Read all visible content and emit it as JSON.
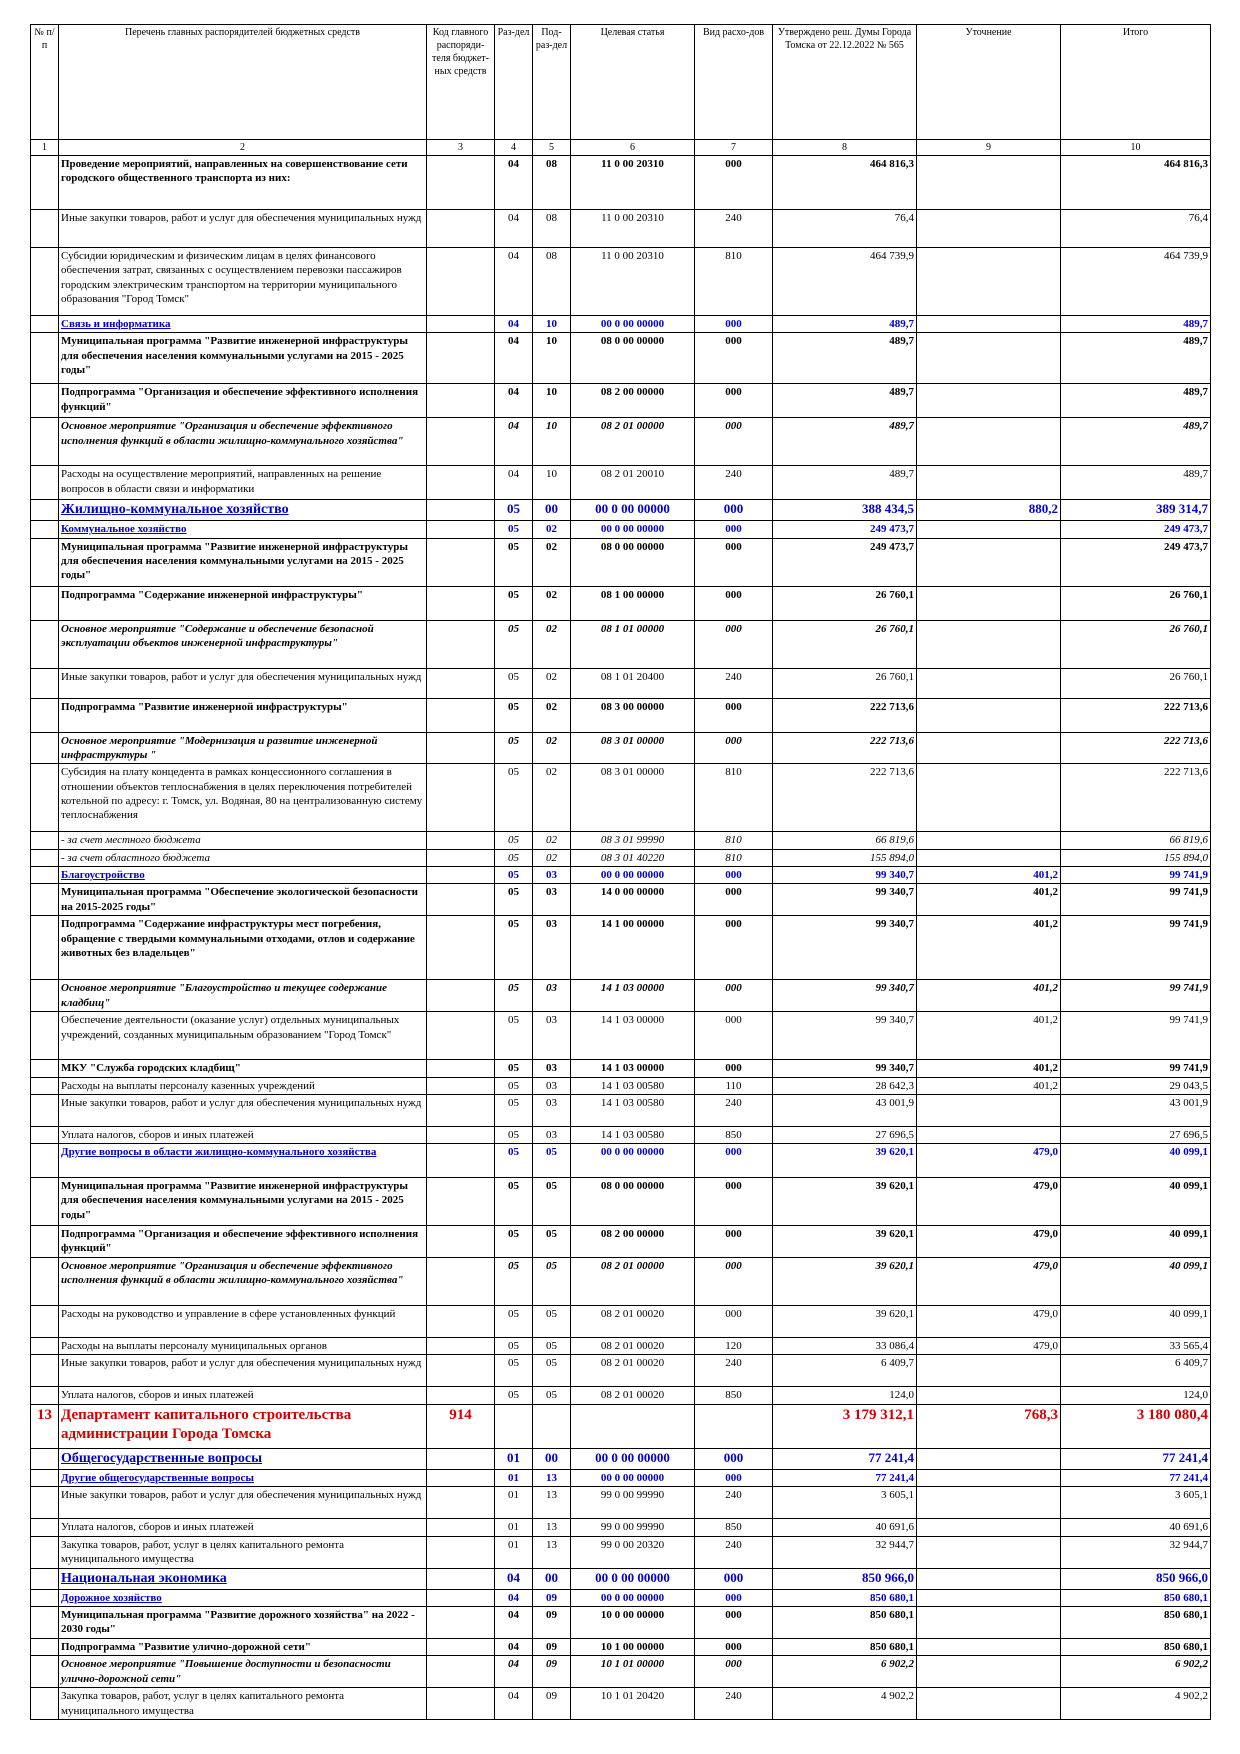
{
  "header": [
    "№ п/п",
    "Перечень главных распорядителей бюджетных средств",
    "Код главного распоряди-теля бюджет-ных средств",
    "Раз-дел",
    "Под-раз-дел",
    "Целевая статья",
    "Вид расхо-дов",
    "Утверждено реш. Думы Города Томска от 22.12.2022 № 565",
    "Уточнение",
    "Итого"
  ],
  "col_numbers": [
    "1",
    "2",
    "3",
    "4",
    "5",
    "6",
    "7",
    "8",
    "9",
    "10"
  ],
  "rows": [
    {
      "s": "b",
      "h": 54,
      "num": "",
      "name": "Проведение мероприятий, направленных на совершенствование сети городского общественного транспорта из них:",
      "code": "",
      "razdel": "04",
      "podrazdel": "08",
      "celevaya": "11 0 00 20310",
      "vid": "000",
      "utv": "464 816,3",
      "utoch": "",
      "itogo": "464 816,3"
    },
    {
      "s": "n",
      "h": 38,
      "num": "",
      "name": "Иные закупки товаров, работ и услуг для обеспечения муниципальных нужд",
      "code": "",
      "razdel": "04",
      "podrazdel": "08",
      "celevaya": "11 0 00 20310",
      "vid": "240",
      "utv": "76,4",
      "utoch": "",
      "itogo": "76,4"
    },
    {
      "s": "n",
      "h": 68,
      "num": "",
      "name": "Субсидии юридическим и физическим лицам в целях финансового обеспечения затрат, связанных с осуществлением перевозки пассажиров городским электрическим транспортом на территории муниципального образования \"Город Томск\"",
      "code": "",
      "razdel": "04",
      "podrazdel": "08",
      "celevaya": "11 0 00 20310",
      "vid": "810",
      "utv": "464 739,9",
      "utoch": "",
      "itogo": "464 739,9"
    },
    {
      "s": "u",
      "h": 16,
      "num": "",
      "name": "Связь и информатика",
      "code": "",
      "razdel": "04",
      "podrazdel": "10",
      "celevaya": "00 0 00 00000",
      "vid": "000",
      "utv": "489,7",
      "utoch": "",
      "itogo": "489,7"
    },
    {
      "s": "b",
      "h": 51,
      "num": "",
      "name": "Муниципальная программа \"Развитие инженерной инфраструктуры для обеспечения населения коммунальными услугами на 2015 - 2025 годы\"",
      "code": "",
      "razdel": "04",
      "podrazdel": "10",
      "celevaya": "08 0 00 00000",
      "vid": "000",
      "utv": "489,7",
      "utoch": "",
      "itogo": "489,7"
    },
    {
      "s": "b",
      "h": 34,
      "num": "",
      "name": "Подпрограмма \"Организация и обеспечение эффективного исполнения функций\"",
      "code": "",
      "razdel": "04",
      "podrazdel": "10",
      "celevaya": "08 2 00 00000",
      "vid": "000",
      "utv": "489,7",
      "utoch": "",
      "itogo": "489,7"
    },
    {
      "s": "i",
      "h": 48,
      "num": "",
      "name": "Основное мероприятие \"Организация и обеспечение эффективного исполнения функций в области жилищно-коммунального хозяйства\"",
      "code": "",
      "razdel": "04",
      "podrazdel": "10",
      "celevaya": "08 2 01 00000",
      "vid": "000",
      "utv": "489,7",
      "utoch": "",
      "itogo": "489,7"
    },
    {
      "s": "n",
      "h": 34,
      "num": "",
      "name": "Расходы на осуществление мероприятий, направленных на решение вопросов в области связи и информатики",
      "code": "",
      "razdel": "04",
      "podrazdel": "10",
      "celevaya": "08 2 01 20010",
      "vid": "240",
      "utv": "489,7",
      "utoch": "",
      "itogo": "489,7"
    },
    {
      "s": "u2",
      "h": 18,
      "num": "",
      "name": "Жилищно-коммунальное хозяйство",
      "code": "",
      "razdel": "05",
      "podrazdel": "00",
      "celevaya": "00 0 00 00000",
      "vid": "000",
      "utv": "388 434,5",
      "utoch": "880,2",
      "itogo": "389 314,7"
    },
    {
      "s": "u",
      "h": 16,
      "num": "",
      "name": "Коммунальное хозяйство",
      "code": "",
      "razdel": "05",
      "podrazdel": "02",
      "celevaya": "00 0 00 00000",
      "vid": "000",
      "utv": "249 473,7",
      "utoch": "",
      "itogo": "249 473,7"
    },
    {
      "s": "b",
      "h": 48,
      "num": "",
      "name": "Муниципальная программа \"Развитие инженерной инфраструктуры для обеспечения населения коммунальными услугами на 2015 - 2025 годы\"",
      "code": "",
      "razdel": "05",
      "podrazdel": "02",
      "celevaya": "08 0 00 00000",
      "vid": "000",
      "utv": "249 473,7",
      "utoch": "",
      "itogo": "249 473,7"
    },
    {
      "s": "b",
      "h": 34,
      "num": "",
      "name": "Подпрограмма \"Содержание инженерной инфраструктуры\"",
      "code": "",
      "razdel": "05",
      "podrazdel": "02",
      "celevaya": "08 1 00 00000",
      "vid": "000",
      "utv": "26 760,1",
      "utoch": "",
      "itogo": "26 760,1"
    },
    {
      "s": "i",
      "h": 48,
      "num": "",
      "name": "Основное мероприятие \"Содержание и обеспечение безопасной эксплуатации объектов инженерной инфраструктуры\"",
      "code": "",
      "razdel": "05",
      "podrazdel": "02",
      "celevaya": "08 1 01 00000",
      "vid": "000",
      "utv": "26 760,1",
      "utoch": "",
      "itogo": "26 760,1"
    },
    {
      "s": "n",
      "h": 30,
      "num": "",
      "name": "Иные закупки товаров, работ и услуг для обеспечения муниципальных нужд",
      "code": "",
      "razdel": "05",
      "podrazdel": "02",
      "celevaya": "08 1 01 20400",
      "vid": "240",
      "utv": "26 760,1",
      "utoch": "",
      "itogo": "26 760,1"
    },
    {
      "s": "b",
      "h": 34,
      "num": "",
      "name": "Подпрограмма \"Развитие инженерной инфраструктуры\"",
      "code": "",
      "razdel": "05",
      "podrazdel": "02",
      "celevaya": "08 3 00 00000",
      "vid": "000",
      "utv": "222 713,6",
      "utoch": "",
      "itogo": "222 713,6"
    },
    {
      "s": "i",
      "h": 30,
      "num": "",
      "name": "Основное мероприятие \"Модернизация и развитие инженерной инфраструктуры \"",
      "code": "",
      "razdel": "05",
      "podrazdel": "02",
      "celevaya": "08 3 01 00000",
      "vid": "000",
      "utv": "222 713,6",
      "utoch": "",
      "itogo": "222 713,6"
    },
    {
      "s": "n",
      "h": 68,
      "num": "",
      "name": "Субсидия на плату концедента в рамках концессионного соглашения в отношении объектов теплоснабжения в целях переключения потребителей котельной по адресу: г. Томск, ул. Водяная, 80 на централизованную систему теплоснабжения",
      "code": "",
      "razdel": "05",
      "podrazdel": "02",
      "celevaya": "08 3 01 00000",
      "vid": "810",
      "utv": "222 713,6",
      "utoch": "",
      "itogo": "222 713,6"
    },
    {
      "s": "s",
      "h": 15,
      "num": "",
      "name": "- за счет местного бюджета",
      "code": "",
      "razdel": "05",
      "podrazdel": "02",
      "celevaya": "08 3 01 99990",
      "vid": "810",
      "utv": "66 819,6",
      "utoch": "",
      "itogo": "66 819,6"
    },
    {
      "s": "s",
      "h": 15,
      "num": "",
      "name": "- за счет областного бюджета",
      "code": "",
      "razdel": "05",
      "podrazdel": "02",
      "celevaya": "08 3 01 40220",
      "vid": "810",
      "utv": "155 894,0",
      "utoch": "",
      "itogo": "155 894,0"
    },
    {
      "s": "u",
      "h": 16,
      "num": "",
      "name": "Благоустройство",
      "code": "",
      "razdel": "05",
      "podrazdel": "03",
      "celevaya": "00 0 00 00000",
      "vid": "000",
      "utv": "99 340,7",
      "utoch": "401,2",
      "itogo": "99 741,9"
    },
    {
      "s": "b",
      "h": 32,
      "num": "",
      "name": "Муниципальная программа \"Обеспечение экологической безопасности на 2015-2025 годы\"",
      "code": "",
      "razdel": "05",
      "podrazdel": "03",
      "celevaya": "14 0 00 00000",
      "vid": "000",
      "utv": "99 340,7",
      "utoch": "401,2",
      "itogo": "99 741,9"
    },
    {
      "s": "b",
      "h": 64,
      "num": "",
      "name": "Подпрограмма \"Содержание инфраструктуры мест погребения, обращение с твердыми коммунальными отходами, отлов и содержание животных без владельцев\"",
      "code": "",
      "razdel": "05",
      "podrazdel": "03",
      "celevaya": "14 1 00 00000",
      "vid": "000",
      "utv": "99 340,7",
      "utoch": "401,2",
      "itogo": "99 741,9"
    },
    {
      "s": "i",
      "h": 32,
      "num": "",
      "name": "Основное мероприятие \"Благоустройство и текущее содержание кладбищ\"",
      "code": "",
      "razdel": "05",
      "podrazdel": "03",
      "celevaya": "14 1 03 00000",
      "vid": "000",
      "utv": "99 340,7",
      "utoch": "401,2",
      "itogo": "99 741,9"
    },
    {
      "s": "n",
      "h": 48,
      "num": "",
      "name": "Обеспечение деятельности (оказание услуг) отдельных муниципальных учреждений, созданных муниципальным образованием \"Город Томск\"",
      "code": "",
      "razdel": "05",
      "podrazdel": "03",
      "celevaya": "14 1 03 00000",
      "vid": "000",
      "utv": "99 340,7",
      "utoch": "401,2",
      "itogo": "99 741,9"
    },
    {
      "s": "b",
      "h": 15,
      "num": "",
      "name": "МКУ \"Служба городских кладбищ\"",
      "code": "",
      "razdel": "05",
      "podrazdel": "03",
      "celevaya": "14 1 03 00000",
      "vid": "000",
      "utv": "99 340,7",
      "utoch": "401,2",
      "itogo": "99 741,9"
    },
    {
      "s": "n",
      "h": 15,
      "num": "",
      "name": "Расходы на выплаты персоналу казенных учреждений",
      "code": "",
      "razdel": "05",
      "podrazdel": "03",
      "celevaya": "14 1 03 00580",
      "vid": "110",
      "utv": "28 642,3",
      "utoch": "401,2",
      "itogo": "29 043,5"
    },
    {
      "s": "n",
      "h": 32,
      "num": "",
      "name": "Иные закупки товаров, работ и услуг для обеспечения муниципальных нужд",
      "code": "",
      "razdel": "05",
      "podrazdel": "03",
      "celevaya": "14 1 03 00580",
      "vid": "240",
      "utv": "43 001,9",
      "utoch": "",
      "itogo": "43 001,9"
    },
    {
      "s": "n",
      "h": 16,
      "num": "",
      "name": "Уплата налогов, сборов и иных платежей",
      "code": "",
      "razdel": "05",
      "podrazdel": "03",
      "celevaya": "14 1 03 00580",
      "vid": "850",
      "utv": "27 696,5",
      "utoch": "",
      "itogo": "27 696,5"
    },
    {
      "s": "u",
      "h": 34,
      "num": "",
      "name": "Другие вопросы в области жилищно-коммунального хозяйства",
      "code": "",
      "razdel": "05",
      "podrazdel": "05",
      "celevaya": "00 0 00 00000",
      "vid": "000",
      "utv": "39 620,1",
      "utoch": "479,0",
      "itogo": "40 099,1"
    },
    {
      "s": "b",
      "h": 48,
      "num": "",
      "name": "Муниципальная программа \"Развитие инженерной инфраструктуры для обеспечения населения коммунальными услугами на 2015 - 2025 годы\"",
      "code": "",
      "razdel": "05",
      "podrazdel": "05",
      "celevaya": "08 0 00 00000",
      "vid": "000",
      "utv": "39 620,1",
      "utoch": "479,0",
      "itogo": "40 099,1"
    },
    {
      "s": "b",
      "h": 32,
      "num": "",
      "name": "Подпрограмма \"Организация и обеспечение эффективного исполнения функций\"",
      "code": "",
      "razdel": "05",
      "podrazdel": "05",
      "celevaya": "08 2 00 00000",
      "vid": "000",
      "utv": "39 620,1",
      "utoch": "479,0",
      "itogo": "40 099,1"
    },
    {
      "s": "i",
      "h": 48,
      "num": "",
      "name": "Основное мероприятие \"Организация и обеспечение эффективного исполнения функций в области жилищно-коммунального хозяйства\"",
      "code": "",
      "razdel": "05",
      "podrazdel": "05",
      "celevaya": "08 2 01 00000",
      "vid": "000",
      "utv": "39 620,1",
      "utoch": "479,0",
      "itogo": "40 099,1"
    },
    {
      "s": "n",
      "h": 32,
      "num": "",
      "name": "Расходы на руководство и управление в сфере установленных функций",
      "code": "",
      "razdel": "05",
      "podrazdel": "05",
      "celevaya": "08 2 01 00020",
      "vid": "000",
      "utv": "39 620,1",
      "utoch": "479,0",
      "itogo": "40 099,1"
    },
    {
      "s": "n",
      "h": 16,
      "num": "",
      "name": "Расходы на выплаты персоналу муниципальных органов",
      "code": "",
      "razdel": "05",
      "podrazdel": "05",
      "celevaya": "08 2 01 00020",
      "vid": "120",
      "utv": "33 086,4",
      "utoch": "479,0",
      "itogo": "33 565,4"
    },
    {
      "s": "n",
      "h": 32,
      "num": "",
      "name": "Иные закупки товаров, работ и услуг для обеспечения муниципальных нужд",
      "code": "",
      "razdel": "05",
      "podrazdel": "05",
      "celevaya": "08 2 01 00020",
      "vid": "240",
      "utv": "6 409,7",
      "utoch": "",
      "itogo": "6 409,7"
    },
    {
      "s": "n",
      "h": 16,
      "num": "",
      "name": "Уплата налогов, сборов и иных платежей",
      "code": "",
      "razdel": "05",
      "podrazdel": "05",
      "celevaya": "08 2 01 00020",
      "vid": "850",
      "utv": "124,0",
      "utoch": "",
      "itogo": "124,0"
    },
    {
      "s": "d",
      "h": 44,
      "num": "13",
      "name": "Департамент капитального строительства администрации Города Томска",
      "code": "914",
      "razdel": "",
      "podrazdel": "",
      "celevaya": "",
      "vid": "",
      "utv": "3 179 312,1",
      "utoch": "768,3",
      "itogo": "3 180 080,4"
    },
    {
      "s": "u2",
      "h": 18,
      "num": "",
      "name": "Общегосударственные вопросы",
      "code": "",
      "razdel": "01",
      "podrazdel": "00",
      "celevaya": "00 0 00 00000",
      "vid": "000",
      "utv": "77 241,4",
      "utoch": "",
      "itogo": "77 241,4"
    },
    {
      "s": "u",
      "h": 16,
      "num": "",
      "name": "Другие общегосударственные вопросы",
      "code": "",
      "razdel": "01",
      "podrazdel": "13",
      "celevaya": "00 0 00 00000",
      "vid": "000",
      "utv": "77 241,4",
      "utoch": "",
      "itogo": "77 241,4"
    },
    {
      "s": "n",
      "h": 32,
      "num": "",
      "name": "Иные закупки товаров, работ и услуг для обеспечения муниципальных нужд",
      "code": "",
      "razdel": "01",
      "podrazdel": "13",
      "celevaya": "99 0 00 99990",
      "vid": "240",
      "utv": "3 605,1",
      "utoch": "",
      "itogo": "3 605,1"
    },
    {
      "s": "n",
      "h": 16,
      "num": "",
      "name": "Уплата налогов, сборов и иных платежей",
      "code": "",
      "razdel": "01",
      "podrazdel": "13",
      "celevaya": "99 0 00 99990",
      "vid": "850",
      "utv": "40 691,6",
      "utoch": "",
      "itogo": "40 691,6"
    },
    {
      "s": "n",
      "h": 32,
      "num": "",
      "name": "Закупка товаров, работ, услуг в целях капитального ремонта муниципального имущества",
      "code": "",
      "razdel": "01",
      "podrazdel": "13",
      "celevaya": "99 0 00 20320",
      "vid": "240",
      "utv": "32 944,7",
      "utoch": "",
      "itogo": "32 944,7"
    },
    {
      "s": "u2",
      "h": 18,
      "num": "",
      "name": "Национальная экономика",
      "code": "",
      "razdel": "04",
      "podrazdel": "00",
      "celevaya": "00 0 00 00000",
      "vid": "000",
      "utv": "850 966,0",
      "utoch": "",
      "itogo": "850 966,0"
    },
    {
      "s": "u",
      "h": 16,
      "num": "",
      "name": "Дорожное хозяйство",
      "code": "",
      "razdel": "04",
      "podrazdel": "09",
      "celevaya": "00 0 00 00000",
      "vid": "000",
      "utv": "850 680,1",
      "utoch": "",
      "itogo": "850 680,1"
    },
    {
      "s": "b",
      "h": 32,
      "num": "",
      "name": "Муниципальная программа \"Развитие дорожного хозяйства\" на 2022 - 2030 годы\"",
      "code": "",
      "razdel": "04",
      "podrazdel": "09",
      "celevaya": "10 0 00 00000",
      "vid": "000",
      "utv": "850 680,1",
      "utoch": "",
      "itogo": "850 680,1"
    },
    {
      "s": "b",
      "h": 16,
      "num": "",
      "name": "Подпрограмма \"Развитие улично-дорожной сети\"",
      "code": "",
      "razdel": "04",
      "podrazdel": "09",
      "celevaya": "10 1 00 00000",
      "vid": "000",
      "utv": "850 680,1",
      "utoch": "",
      "itogo": "850 680,1"
    },
    {
      "s": "i",
      "h": 32,
      "num": "",
      "name": "Основное мероприятие \"Повышение доступности и безопасности улично-дорожной сети\"",
      "code": "",
      "razdel": "04",
      "podrazdel": "09",
      "celevaya": "10 1 01 00000",
      "vid": "000",
      "utv": "6 902,2",
      "utoch": "",
      "itogo": "6 902,2"
    },
    {
      "s": "n",
      "h": 32,
      "num": "",
      "name": "Закупка товаров, работ, услуг в целях капитального ремонта муниципального имущества",
      "code": "",
      "razdel": "04",
      "podrazdel": "09",
      "celevaya": "10 1 01 20420",
      "vid": "240",
      "utv": "4 902,2",
      "utoch": "",
      "itogo": "4 902,2"
    }
  ]
}
